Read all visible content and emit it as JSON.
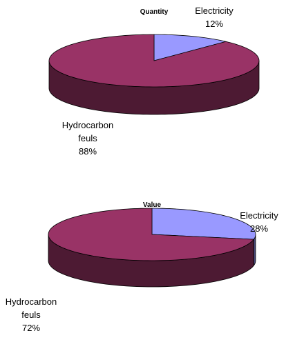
{
  "chart_data": [
    {
      "type": "pie3d",
      "title": "Quantity",
      "categories": [
        "Electricity",
        "Hydrocarbon feuls"
      ],
      "values": [
        12,
        88
      ],
      "value_labels": [
        "12%",
        "88%"
      ],
      "colors": [
        "#9999ff",
        "#993366"
      ]
    },
    {
      "type": "pie3d",
      "title": "Value",
      "categories": [
        "Electricity",
        "Hydrocarbon feuls"
      ],
      "values": [
        28,
        72
      ],
      "value_labels": [
        "28%",
        "72%"
      ],
      "colors": [
        "#9999ff",
        "#993366"
      ]
    }
  ]
}
